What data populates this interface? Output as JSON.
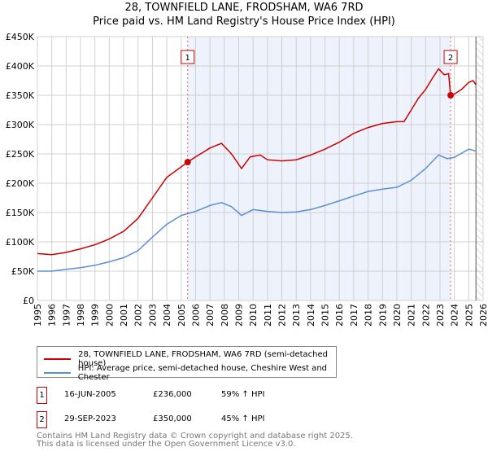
{
  "title": "28, TOWNFIELD LANE, FRODSHAM, WA6 7RD",
  "subtitle": "Price paid vs. HM Land Registry's House Price Index (HPI)",
  "colors": {
    "property": "#cc0000",
    "hpi": "#5b8fd4",
    "shade": "#eef2fc"
  },
  "chart_data": {
    "type": "line",
    "title": "28, TOWNFIELD LANE, FRODSHAM, WA6 7RD",
    "subtitle": "Price paid vs. HM Land Registry's House Price Index (HPI)",
    "xlim": [
      1995,
      2026
    ],
    "ylim": [
      0,
      450000
    ],
    "x_ticks": [
      "1995",
      "1996",
      "1997",
      "1998",
      "1999",
      "2000",
      "2001",
      "2002",
      "2003",
      "2004",
      "2005",
      "2006",
      "2007",
      "2008",
      "2009",
      "2010",
      "2011",
      "2012",
      "2013",
      "2014",
      "2015",
      "2016",
      "2017",
      "2018",
      "2019",
      "2020",
      "2021",
      "2022",
      "2023",
      "2024",
      "2025",
      "2026"
    ],
    "y_ticks": [
      {
        "v": 0,
        "label": "£0"
      },
      {
        "v": 50000,
        "label": "£50K"
      },
      {
        "v": 100000,
        "label": "£100K"
      },
      {
        "v": 150000,
        "label": "£150K"
      },
      {
        "v": 200000,
        "label": "£200K"
      },
      {
        "v": 250000,
        "label": "£250K"
      },
      {
        "v": 300000,
        "label": "£300K"
      },
      {
        "v": 350000,
        "label": "£350K"
      },
      {
        "v": 400000,
        "label": "£400K"
      },
      {
        "v": 450000,
        "label": "£450K"
      }
    ],
    "grid": true,
    "shaded_range": [
      2005.45,
      2023.74
    ],
    "hatched_from": 2025.5,
    "series": [
      {
        "name": "28, TOWNFIELD LANE, FRODSHAM, WA6 7RD (semi-detached house)",
        "color": "#cc0000",
        "x": [
          1995,
          1996,
          1997,
          1998,
          1999,
          2000,
          2001,
          2002,
          2003,
          2004,
          2005.45,
          2006,
          2007,
          2007.8,
          2008.5,
          2009.2,
          2009.8,
          2010.5,
          2011,
          2012,
          2013,
          2014,
          2015,
          2016,
          2017,
          2018,
          2019,
          2020,
          2020.5,
          2021,
          2021.5,
          2022,
          2022.5,
          2022.9,
          2023.3,
          2023.6,
          2023.74,
          2024,
          2024.5,
          2025,
          2025.3,
          2025.5
        ],
        "y": [
          80000,
          78000,
          82000,
          88000,
          95000,
          105000,
          118000,
          140000,
          175000,
          210000,
          236000,
          245000,
          260000,
          268000,
          250000,
          225000,
          245000,
          248000,
          240000,
          238000,
          240000,
          248000,
          258000,
          270000,
          285000,
          295000,
          302000,
          305000,
          305000,
          325000,
          345000,
          360000,
          380000,
          395000,
          385000,
          387000,
          350000,
          352000,
          360000,
          372000,
          375000,
          368000
        ]
      },
      {
        "name": "HPI: Average price, semi-detached house, Cheshire West and Chester",
        "color": "#5b8fd4",
        "x": [
          1995,
          1996,
          1997,
          1998,
          1999,
          2000,
          2001,
          2002,
          2003,
          2004,
          2005,
          2006,
          2007,
          2007.8,
          2008.5,
          2009.2,
          2010,
          2011,
          2012,
          2013,
          2014,
          2015,
          2016,
          2017,
          2018,
          2019,
          2020,
          2021,
          2022,
          2022.9,
          2023.5,
          2024,
          2025,
          2025.5
        ],
        "y": [
          50000,
          50000,
          53000,
          56000,
          60000,
          66000,
          73000,
          85000,
          108000,
          130000,
          145000,
          152000,
          162000,
          167000,
          160000,
          145000,
          155000,
          152000,
          150000,
          151000,
          155000,
          162000,
          170000,
          178000,
          186000,
          190000,
          193000,
          205000,
          225000,
          248000,
          242000,
          244000,
          258000,
          255000
        ]
      }
    ],
    "annotations": [
      {
        "label": "1",
        "x": 2005.45,
        "y": 236000
      },
      {
        "label": "2",
        "x": 2023.74,
        "y": 350000
      }
    ],
    "legend_position": "below"
  },
  "legend": [
    {
      "label": "28, TOWNFIELD LANE, FRODSHAM, WA6 7RD (semi-detached house)"
    },
    {
      "label": "HPI: Average price, semi-detached house, Cheshire West and Chester"
    }
  ],
  "sales": [
    {
      "num": "1",
      "date": "16-JUN-2005",
      "price": "£236,000",
      "delta": "59% ↑ HPI"
    },
    {
      "num": "2",
      "date": "29-SEP-2023",
      "price": "£350,000",
      "delta": "45% ↑ HPI"
    }
  ],
  "footer": [
    "Contains HM Land Registry data © Crown copyright and database right 2025.",
    "This data is licensed under the Open Government Licence v3.0."
  ]
}
